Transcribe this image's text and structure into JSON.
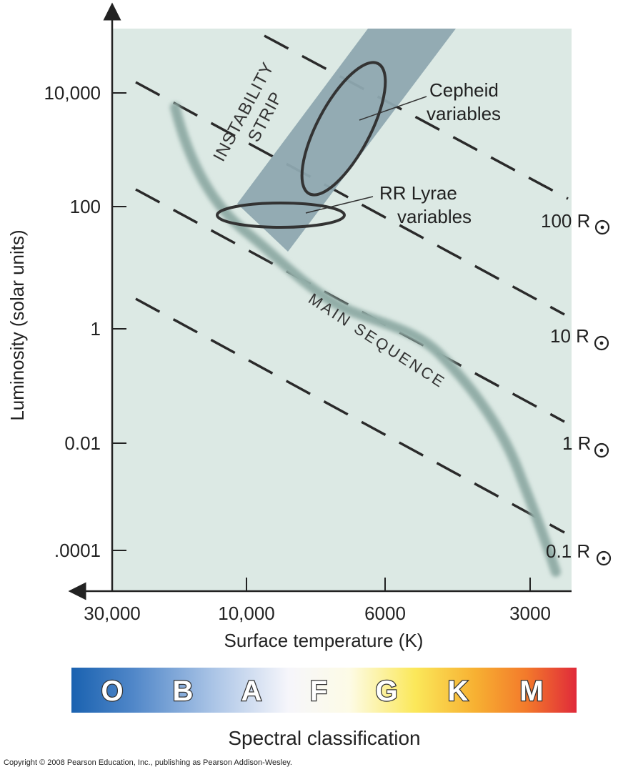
{
  "chart_data": {
    "type": "scatter",
    "ylabel": "Luminosity (solar units)",
    "xlabel": "Surface temperature (K)",
    "y_scale": "log",
    "x_scale": "log",
    "x_reversed": true,
    "y_ticks": [
      "10,000",
      "100",
      "1",
      "0.01",
      ".0001"
    ],
    "x_ticks": [
      "30,000",
      "10,000",
      "6000",
      "3000"
    ],
    "regions": [
      {
        "name": "INSTABILITY STRIP",
        "label_lines": [
          "INSTABILITY",
          "STRIP"
        ]
      },
      {
        "name": "MAIN SEQUENCE",
        "label": "MAIN SEQUENCE"
      }
    ],
    "annotations": [
      {
        "lines": [
          "Cepheid",
          "variables"
        ]
      },
      {
        "lines": [
          "RR Lyrae",
          "variables"
        ]
      }
    ],
    "radius_lines": [
      {
        "label": "100 R",
        "radius_solar": 100
      },
      {
        "label": "10 R",
        "radius_solar": 10
      },
      {
        "label": "1 R",
        "radius_solar": 1
      },
      {
        "label": "0.1 R",
        "radius_solar": 0.1
      }
    ],
    "grid": false
  },
  "spectral": {
    "title": "Spectral classification",
    "classes": [
      "O",
      "B",
      "A",
      "F",
      "G",
      "K",
      "M"
    ]
  },
  "copyright": "Copyright © 2008 Pearson Education, Inc., publishing as Pearson Addison-Wesley.",
  "colors": {
    "plot_bg": "#dce9e4",
    "strip": "#8ea8b0",
    "main_sequence": "#96b0aa",
    "dash": "#2a2a2a"
  }
}
